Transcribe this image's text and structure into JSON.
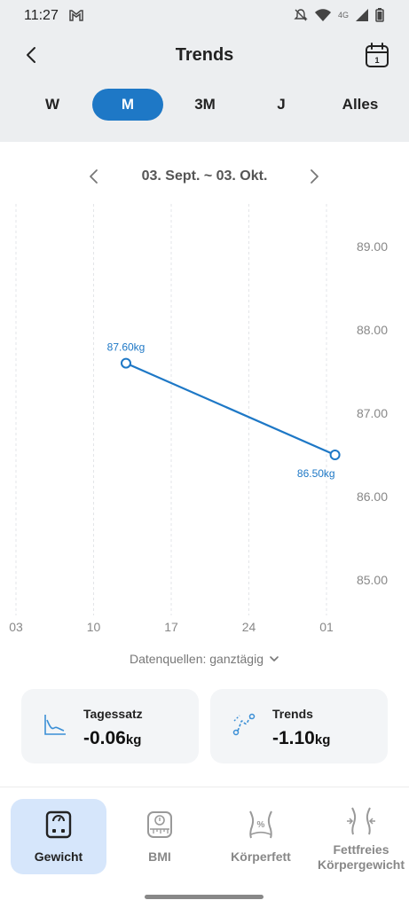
{
  "status_bar": {
    "time": "11:27",
    "network": "4G"
  },
  "header": {
    "title": "Trends"
  },
  "period_tabs": [
    {
      "label": "W",
      "active": false
    },
    {
      "label": "M",
      "active": true
    },
    {
      "label": "3M",
      "active": false
    },
    {
      "label": "J",
      "active": false
    },
    {
      "label": "Alles",
      "active": false
    }
  ],
  "date_nav": {
    "range": "03. Sept. ~ 03. Okt."
  },
  "data_source": {
    "label": "Datenquellen: ganztägig"
  },
  "cards": [
    {
      "title": "Tagessatz",
      "value": "-0.06",
      "unit": "kg",
      "icon": "daily-rate-chart-icon"
    },
    {
      "title": "Trends",
      "value": "-1.10",
      "unit": "kg",
      "icon": "trend-curve-icon"
    }
  ],
  "bottom_nav": [
    {
      "label": "Gewicht",
      "icon": "scale-icon",
      "active": true
    },
    {
      "label": "BMI",
      "icon": "bmi-scale-icon",
      "active": false
    },
    {
      "label": "Körperfett",
      "icon": "body-fat-icon",
      "active": false
    },
    {
      "label": "Fettfreies Körpergewicht",
      "icon": "lean-mass-icon",
      "active": false
    }
  ],
  "colors": {
    "accent": "#1e78c6",
    "point_label": "#1e78c6",
    "tab_active_bg": "#1e78c6",
    "nav_active_bg": "#d6e6fb"
  },
  "chart_data": {
    "type": "line",
    "x_ticks": [
      "03",
      "10",
      "17",
      "24",
      "01"
    ],
    "y_ticks": [
      "89.00",
      "88.00",
      "87.00",
      "86.00",
      "85.00"
    ],
    "ylim": [
      85,
      89
    ],
    "xlim": [
      "2023-09-03",
      "2023-10-03"
    ],
    "series": [
      {
        "points": [
          {
            "x": "2023-09-13",
            "y": 87.6,
            "label": "87.60kg"
          },
          {
            "x": "2023-10-02",
            "y": 86.5,
            "label": "86.50kg"
          }
        ]
      }
    ],
    "grid": "vertical dashed"
  }
}
